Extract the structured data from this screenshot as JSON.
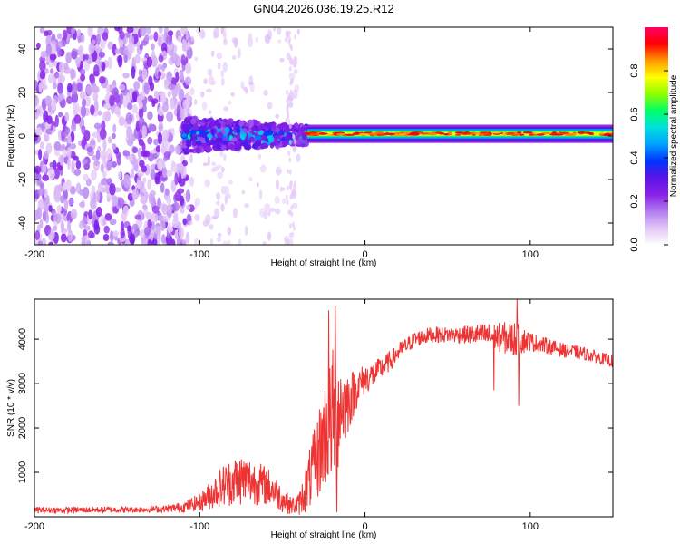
{
  "title": "GN04.2026.036.19.25.R12",
  "chart_data": [
    {
      "type": "heatmap",
      "name": "spectrogram",
      "title": "",
      "xlabel": "Height of straight line (km)",
      "ylabel": "Frequency (Hz)",
      "xlim": [
        -200,
        150
      ],
      "ylim": [
        -50,
        50
      ],
      "x_ticks": [
        -200,
        -100,
        0,
        100
      ],
      "y_ticks": [
        -40,
        -20,
        0,
        20,
        40
      ],
      "ridge_frequency_hz": 1,
      "description_series": [
        {
          "name": "noise scatter",
          "x_range": [
            -200,
            -105
          ],
          "y_range": [
            -50,
            50
          ],
          "amplitude": 0.1
        },
        {
          "name": "broadening signal",
          "x_range": [
            -110,
            -35
          ],
          "y_range": [
            -9,
            7
          ],
          "amplitude": 0.3
        },
        {
          "name": "narrow carrier",
          "x_range": [
            -35,
            150
          ],
          "y_range": [
            -2,
            4
          ],
          "amplitude": 0.9
        }
      ],
      "colorbar": {
        "label": "Normalized spectral amplitude",
        "range": [
          0.0,
          1.0
        ],
        "ticks": [
          "0.0",
          "0.2",
          "0.4",
          "0.6",
          "0.8"
        ],
        "tick_values": [
          0.0,
          0.2,
          0.4,
          0.6,
          0.8
        ],
        "colors": [
          "#ffffff",
          "#e3c6f7",
          "#b07cf0",
          "#8a20e8",
          "#5a14e6",
          "#0033ff",
          "#00a0ff",
          "#00e0e0",
          "#00ff66",
          "#8cff00",
          "#ffff00",
          "#ff9900",
          "#ff0000",
          "#ff0066"
        ]
      }
    },
    {
      "type": "line",
      "name": "snr",
      "xlabel": "Height of straight line (km)",
      "ylabel": "SNR (10 * v/v)",
      "xlim": [
        -200,
        150
      ],
      "ylim": [
        0,
        4900
      ],
      "x_ticks": [
        -200,
        -100,
        0,
        100
      ],
      "y_ticks": [
        1000,
        2000,
        3000,
        4000
      ],
      "color": "#ee3333",
      "series": [
        {
          "name": "SNR",
          "x": [
            -200,
            -180,
            -160,
            -140,
            -120,
            -110,
            -100,
            -95,
            -90,
            -85,
            -80,
            -75,
            -70,
            -65,
            -60,
            -55,
            -50,
            -45,
            -40,
            -35,
            -30,
            -25,
            -20,
            -18,
            -15,
            -10,
            -5,
            0,
            5,
            10,
            15,
            20,
            25,
            30,
            40,
            50,
            60,
            70,
            80,
            90,
            100,
            110,
            120,
            130,
            140,
            150
          ],
          "values": [
            150,
            150,
            160,
            160,
            180,
            220,
            330,
            450,
            600,
            720,
            800,
            850,
            820,
            750,
            700,
            600,
            400,
            250,
            280,
            700,
            1200,
            1800,
            2200,
            2400,
            2500,
            2600,
            2900,
            3100,
            3200,
            3350,
            3500,
            3700,
            3850,
            4000,
            4100,
            4100,
            4100,
            4100,
            4050,
            4000,
            3950,
            3850,
            3750,
            3700,
            3600,
            3500
          ],
          "noise_amplitude": [
            70,
            70,
            70,
            70,
            80,
            120,
            200,
            300,
            400,
            500,
            550,
            600,
            550,
            500,
            450,
            400,
            300,
            200,
            250,
            600,
            900,
            1200,
            1500,
            1800,
            1200,
            700,
            450,
            350,
            300,
            260,
            230,
            200,
            190,
            180,
            180,
            180,
            200,
            260,
            320,
            420,
            220,
            180,
            160,
            150,
            140,
            140
          ],
          "spikes": [
            {
              "x": -22,
              "value": 4650
            },
            {
              "x": -18,
              "value": 4750
            },
            {
              "x": -17,
              "value": 3700
            },
            {
              "x": 92,
              "value": 4900
            }
          ],
          "dips": [
            {
              "x": -17,
              "value": 100
            },
            {
              "x": 78,
              "value": 2850
            },
            {
              "x": 93,
              "value": 2500
            }
          ]
        }
      ]
    }
  ]
}
